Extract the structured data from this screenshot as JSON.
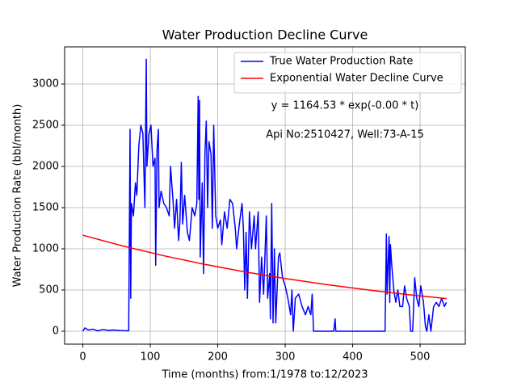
{
  "chart_data": {
    "type": "line",
    "title": "Water Production Decline Curve",
    "xlabel": "Time (months) from:1/1978 to:12/2023",
    "ylabel": "Water Production Rate (bbl/month)",
    "annotations": [
      "y = 1164.53 * exp(-0.00 * t)",
      "Api No:2510427, Well:73-A-15"
    ],
    "xlim": [
      -27,
      567
    ],
    "ylim": [
      -157,
      3451
    ],
    "xticks": [
      0,
      100,
      200,
      300,
      400,
      500
    ],
    "yticks": [
      0,
      500,
      1000,
      1500,
      2000,
      2500,
      3000
    ],
    "grid": true,
    "legend": "upper right",
    "series": [
      {
        "name": "True Water Production Rate",
        "color": "#0000ff",
        "x": [
          0,
          3,
          8,
          15,
          22,
          30,
          38,
          45,
          55,
          68,
          70,
          71,
          72,
          75,
          78,
          80,
          83,
          86,
          89,
          92,
          94,
          95,
          98,
          101,
          104,
          107,
          108,
          110,
          112,
          113,
          116,
          120,
          124,
          128,
          130,
          134,
          136,
          139,
          142,
          144,
          146,
          148,
          151,
          155,
          158,
          162,
          166,
          169,
          171,
          172,
          173,
          174,
          177,
          179,
          181,
          183,
          185,
          187,
          190,
          192,
          194,
          197,
          200,
          204,
          206,
          210,
          214,
          218,
          222,
          226,
          228,
          232,
          236,
          238,
          240,
          242,
          244,
          247,
          250,
          254,
          256,
          260,
          262,
          265,
          268,
          272,
          274,
          277,
          278,
          280,
          282,
          284,
          286,
          290,
          292,
          296,
          300,
          304,
          308,
          310,
          312,
          315,
          320,
          325,
          330,
          334,
          338,
          340,
          342,
          372,
          374,
          375,
          448,
          450,
          451,
          452,
          454,
          455,
          456,
          458,
          461,
          464,
          467,
          470,
          474,
          477,
          480,
          484,
          486,
          489,
          492,
          495,
          498,
          501,
          505,
          508,
          510,
          513,
          516,
          520,
          524,
          528,
          532,
          536,
          539
        ],
        "values": [
          0,
          40,
          15,
          25,
          5,
          20,
          10,
          15,
          8,
          5,
          2450,
          400,
          1550,
          1400,
          1800,
          1650,
          2250,
          2500,
          2400,
          1500,
          3300,
          2000,
          2400,
          2500,
          2000,
          2100,
          800,
          2200,
          2450,
          1500,
          1700,
          1550,
          1500,
          1400,
          2000,
          1550,
          1250,
          1600,
          1100,
          1350,
          2050,
          1300,
          1650,
          1200,
          1100,
          1500,
          1400,
          1550,
          2850,
          1600,
          2800,
          900,
          1800,
          700,
          2150,
          2550,
          1500,
          2300,
          2150,
          1250,
          2500,
          1400,
          1250,
          1350,
          1050,
          1450,
          1250,
          1600,
          1550,
          1250,
          1000,
          1300,
          1550,
          1250,
          500,
          1200,
          400,
          1450,
          1000,
          1400,
          1000,
          1450,
          350,
          900,
          450,
          1400,
          400,
          700,
          150,
          1550,
          100,
          1000,
          100,
          900,
          950,
          650,
          550,
          400,
          200,
          500,
          0,
          400,
          450,
          300,
          200,
          300,
          200,
          450,
          0,
          0,
          150,
          0,
          0,
          1180,
          450,
          700,
          1150,
          350,
          1050,
          800,
          500,
          350,
          500,
          300,
          300,
          550,
          400,
          300,
          0,
          0,
          650,
          400,
          300,
          550,
          350,
          50,
          0,
          200,
          0,
          300,
          350,
          300,
          400,
          300,
          350
        ]
      },
      {
        "name": "Exponential Water Decline Curve",
        "color": "#ff0000",
        "x": [
          0,
          60,
          120,
          180,
          240,
          300,
          360,
          420,
          480,
          539
        ],
        "values": [
          1164.5,
          1032.9,
          916.1,
          812.6,
          720.8,
          639.3,
          567.1,
          503.0,
          446.2,
          395.7
        ]
      }
    ]
  }
}
